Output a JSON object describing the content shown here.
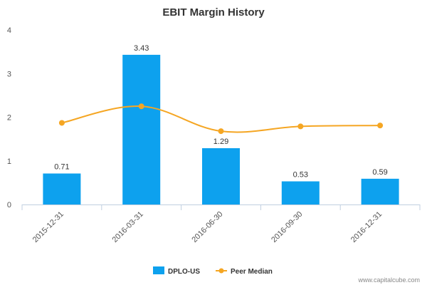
{
  "chart_data": {
    "type": "bar",
    "title": "EBIT Margin History",
    "categories": [
      "2015-12-31",
      "2016-03-31",
      "2016-06-30",
      "2016-09-30",
      "2016-12-31"
    ],
    "ylim": [
      0,
      4
    ],
    "yticks": [
      0,
      1,
      2,
      3,
      4
    ],
    "series": [
      {
        "name": "DPLO-US",
        "kind": "bar",
        "values": [
          0.71,
          3.43,
          1.29,
          0.53,
          0.59
        ],
        "labels": [
          "0.71",
          "3.43",
          "1.29",
          "0.53",
          "0.59"
        ],
        "color": "#0da1ee"
      },
      {
        "name": "Peer Median",
        "kind": "line",
        "values": [
          1.87,
          2.25,
          1.68,
          1.79,
          1.81
        ],
        "color": "#f5a623"
      }
    ],
    "grid": false,
    "legend": "bottom-center"
  },
  "credit": "www.capitalcube.com"
}
